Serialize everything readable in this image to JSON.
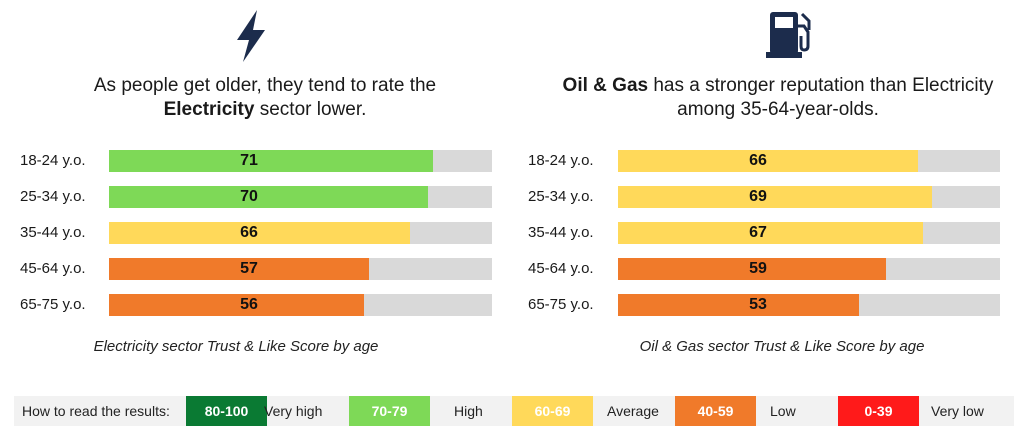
{
  "colors": {
    "very_high": "#0a7a33",
    "high": "#7ed957",
    "average": "#ffd95a",
    "low": "#f07a2a",
    "very_low": "#ff1a1a",
    "track": "#d9d9d9"
  },
  "chart_data": [
    {
      "type": "bar",
      "orientation": "horizontal",
      "icon": "lightning-bolt-icon",
      "headline_pre": "As people get older, they tend to rate the",
      "headline_bold": "Electricity",
      "headline_post": "sector lower.",
      "categories": [
        "18-24 y.o.",
        "25-34 y.o.",
        "35-44 y.o.",
        "45-64 y.o.",
        "65-75 y.o."
      ],
      "values": [
        71,
        70,
        66,
        57,
        56
      ],
      "xlim": [
        0,
        100
      ],
      "caption": "Electricity sector Trust & Like Score by age"
    },
    {
      "type": "bar",
      "orientation": "horizontal",
      "icon": "fuel-pump-icon",
      "headline_bold": "Oil & Gas",
      "headline_post_1": "has a stronger reputation than Electricity",
      "headline_post_2": "among 35-64-year-olds.",
      "categories": [
        "18-24 y.o.",
        "25-34 y.o.",
        "35-44 y.o.",
        "45-64 y.o.",
        "65-75 y.o."
      ],
      "values": [
        66,
        69,
        67,
        59,
        53
      ],
      "xlim": [
        0,
        100
      ],
      "caption": "Oil & Gas sector Trust & Like Score by age"
    }
  ],
  "legend": {
    "title": "How to read the results:",
    "items": [
      {
        "range": "80-100",
        "label": "Very high",
        "color": "#0a7a33"
      },
      {
        "range": "70-79",
        "label": "High",
        "color": "#7ed957"
      },
      {
        "range": "60-69",
        "label": "Average",
        "color": "#ffd95a"
      },
      {
        "range": "40-59",
        "label": "Low",
        "color": "#f07a2a"
      },
      {
        "range": "0-39",
        "label": "Very low",
        "color": "#ff1a1a"
      }
    ]
  }
}
